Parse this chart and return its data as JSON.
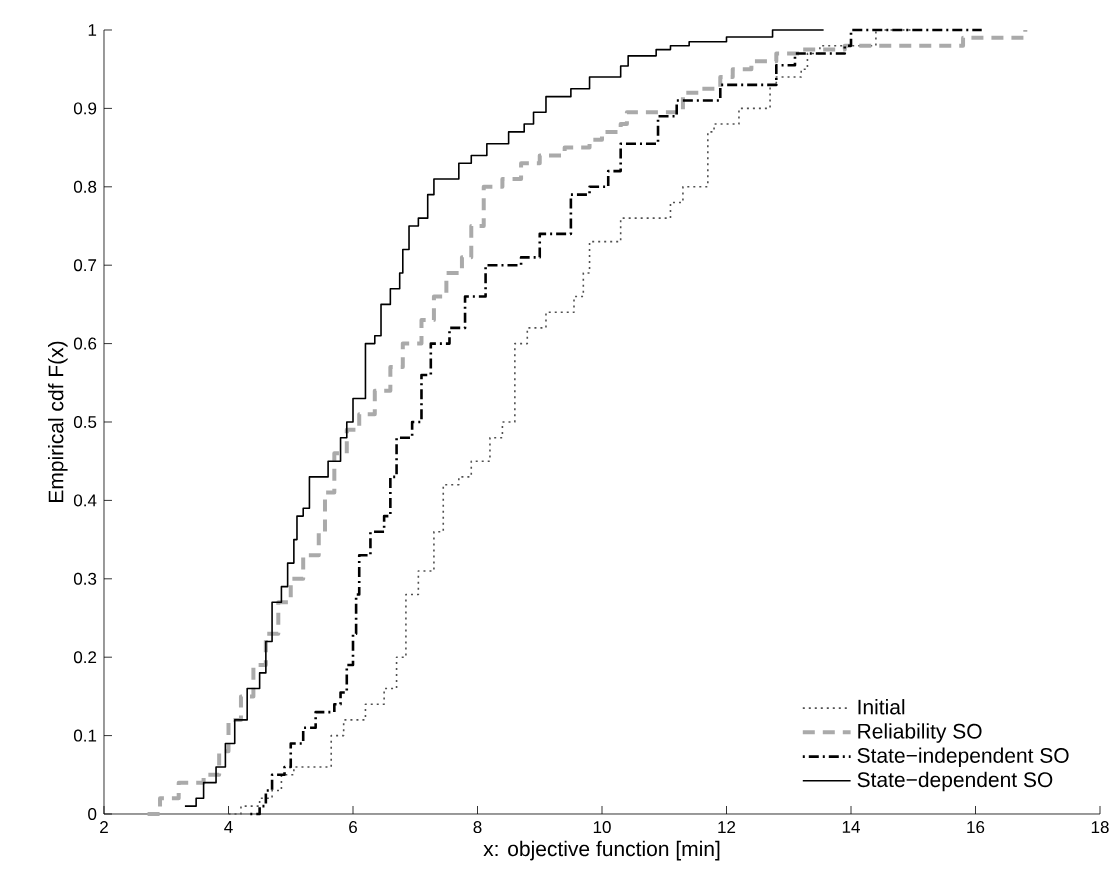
{
  "chart_data": {
    "type": "step",
    "xlabel": "x: objective function [min]",
    "ylabel": "Empirical cdf F(x)",
    "xlim": [
      2,
      18
    ],
    "ylim": [
      0,
      1
    ],
    "xticks": [
      2,
      4,
      6,
      8,
      10,
      12,
      14,
      16,
      18
    ],
    "yticks": [
      0,
      0.1,
      0.2,
      0.3,
      0.4,
      0.5,
      0.6,
      0.7,
      0.8,
      0.9,
      1
    ],
    "grid": false,
    "legend": "bottom right",
    "series": [
      {
        "name": "Initial",
        "color": "#505050",
        "line_style": "dotted",
        "x": [
          4.0,
          4.2,
          4.5,
          4.7,
          4.85,
          5.05,
          5.65,
          5.85,
          6.2,
          6.5,
          6.7,
          6.85,
          7.05,
          7.3,
          7.45,
          7.7,
          7.9,
          8.2,
          8.4,
          8.6,
          8.8,
          9.1,
          9.55,
          9.7,
          9.8,
          10.3,
          11.1,
          11.3,
          11.7,
          11.8,
          12.2,
          12.7,
          12.8,
          13.2,
          13.3,
          13.5,
          14.4,
          15.0
        ],
        "values": [
          0,
          0.01,
          0.02,
          0.03,
          0.05,
          0.06,
          0.1,
          0.12,
          0.14,
          0.16,
          0.2,
          0.28,
          0.31,
          0.36,
          0.42,
          0.43,
          0.45,
          0.48,
          0.5,
          0.6,
          0.62,
          0.64,
          0.66,
          0.69,
          0.73,
          0.76,
          0.78,
          0.8,
          0.87,
          0.88,
          0.9,
          0.93,
          0.94,
          0.95,
          0.97,
          0.98,
          1,
          1
        ]
      },
      {
        "name": "Reliability SO",
        "color": "#aaaaaa",
        "line_style": "dashed",
        "x": [
          2.7,
          2.9,
          3.2,
          3.6,
          3.85,
          4.0,
          4.2,
          4.4,
          4.6,
          4.8,
          5.0,
          5.2,
          5.45,
          5.55,
          5.7,
          5.9,
          6.1,
          6.35,
          6.6,
          6.8,
          7.1,
          7.3,
          7.5,
          7.75,
          7.9,
          8.1,
          8.4,
          8.7,
          9.0,
          9.4,
          9.8,
          10.0,
          10.3,
          10.4,
          11.3,
          11.6,
          11.9,
          12.1,
          12.4,
          12.8,
          13.2,
          13.9,
          15.8,
          16.8
        ],
        "values": [
          0,
          0.02,
          0.04,
          0.05,
          0.08,
          0.12,
          0.15,
          0.19,
          0.23,
          0.27,
          0.3,
          0.33,
          0.36,
          0.41,
          0.46,
          0.49,
          0.51,
          0.54,
          0.57,
          0.6,
          0.63,
          0.66,
          0.69,
          0.71,
          0.75,
          0.8,
          0.81,
          0.83,
          0.84,
          0.85,
          0.86,
          0.87,
          0.88,
          0.895,
          0.92,
          0.925,
          0.94,
          0.95,
          0.96,
          0.97,
          0.975,
          0.98,
          0.99,
          1
        ]
      },
      {
        "name": "State−independent SO",
        "color": "#000000",
        "line_style": "dashdot",
        "x": [
          4.35,
          4.5,
          4.6,
          4.7,
          4.9,
          5.0,
          5.2,
          5.4,
          5.7,
          5.8,
          5.9,
          6.0,
          6.05,
          6.1,
          6.28,
          6.5,
          6.6,
          6.7,
          6.95,
          7.1,
          7.25,
          7.55,
          7.8,
          8.13,
          8.7,
          9.0,
          9.5,
          9.8,
          10.1,
          10.3,
          10.9,
          11.2,
          11.9,
          12.8,
          13.1,
          13.9,
          14.0,
          16.1
        ],
        "values": [
          0,
          0.01,
          0.03,
          0.05,
          0.06,
          0.09,
          0.11,
          0.13,
          0.14,
          0.155,
          0.19,
          0.23,
          0.28,
          0.33,
          0.36,
          0.38,
          0.43,
          0.48,
          0.5,
          0.56,
          0.6,
          0.62,
          0.66,
          0.7,
          0.71,
          0.74,
          0.79,
          0.8,
          0.82,
          0.855,
          0.89,
          0.91,
          0.93,
          0.955,
          0.97,
          0.98,
          1,
          1
        ]
      },
      {
        "name": "State−dependent SO",
        "color": "#000000",
        "line_style": "solid",
        "x": [
          3.3,
          3.48,
          3.6,
          3.8,
          3.95,
          4.1,
          4.3,
          4.5,
          4.6,
          4.7,
          4.85,
          4.95,
          5.05,
          5.1,
          5.2,
          5.3,
          5.6,
          5.8,
          5.9,
          6.0,
          6.2,
          6.35,
          6.45,
          6.6,
          6.75,
          6.8,
          6.9,
          7.05,
          7.2,
          7.3,
          7.7,
          7.9,
          8.15,
          8.5,
          8.75,
          8.9,
          9.1,
          9.5,
          9.8,
          10.3,
          10.42,
          10.87,
          11.1,
          11.4,
          12.0,
          12.74,
          13.56
        ],
        "values": [
          0.01,
          0.02,
          0.04,
          0.06,
          0.09,
          0.12,
          0.16,
          0.18,
          0.22,
          0.27,
          0.29,
          0.32,
          0.35,
          0.38,
          0.39,
          0.43,
          0.45,
          0.48,
          0.5,
          0.53,
          0.6,
          0.61,
          0.65,
          0.67,
          0.69,
          0.72,
          0.75,
          0.76,
          0.79,
          0.81,
          0.83,
          0.84,
          0.855,
          0.87,
          0.88,
          0.895,
          0.915,
          0.925,
          0.94,
          0.954,
          0.967,
          0.975,
          0.98,
          0.985,
          0.991,
          1,
          1
        ]
      }
    ]
  }
}
